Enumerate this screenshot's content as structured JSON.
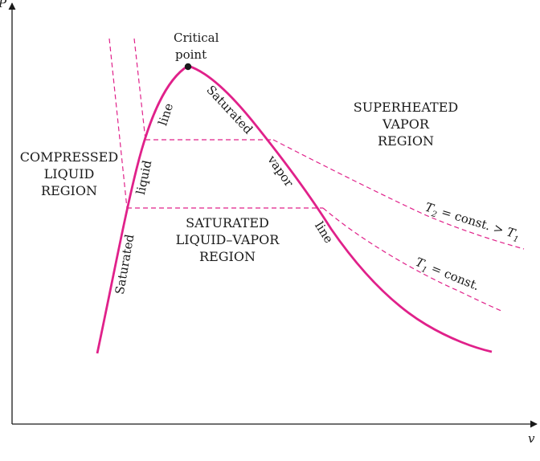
{
  "axes": {
    "y_label": "P",
    "x_label": "v"
  },
  "critical_point": {
    "line1": "Critical",
    "line2": "point"
  },
  "regions": {
    "compressed": {
      "line1": "COMPRESSED",
      "line2": "LIQUID",
      "line3": "REGION"
    },
    "superheated": {
      "line1": "SUPERHEATED",
      "line2": "VAPOR",
      "line3": "REGION"
    },
    "saturated_mix": {
      "line1": "SATURATED",
      "line2": "LIQUID–VAPOR",
      "line3": "REGION"
    }
  },
  "saturated_liquid_line": {
    "word1": "Saturated",
    "word2": "liquid",
    "word3": "line"
  },
  "saturated_vapor_line": {
    "word1": "Saturated",
    "word2": "vapor",
    "word3": "line"
  },
  "isotherms": {
    "t2": {
      "symbol": "T",
      "sub": "2",
      "rest": " = const. > ",
      "symbol2": "T",
      "sub2": "1"
    },
    "t1": {
      "symbol": "T",
      "sub": "1",
      "rest": " = const."
    }
  },
  "colors": {
    "curve": "#e0218a",
    "axis": "#1a1a1a",
    "text": "#1a1a1a"
  }
}
